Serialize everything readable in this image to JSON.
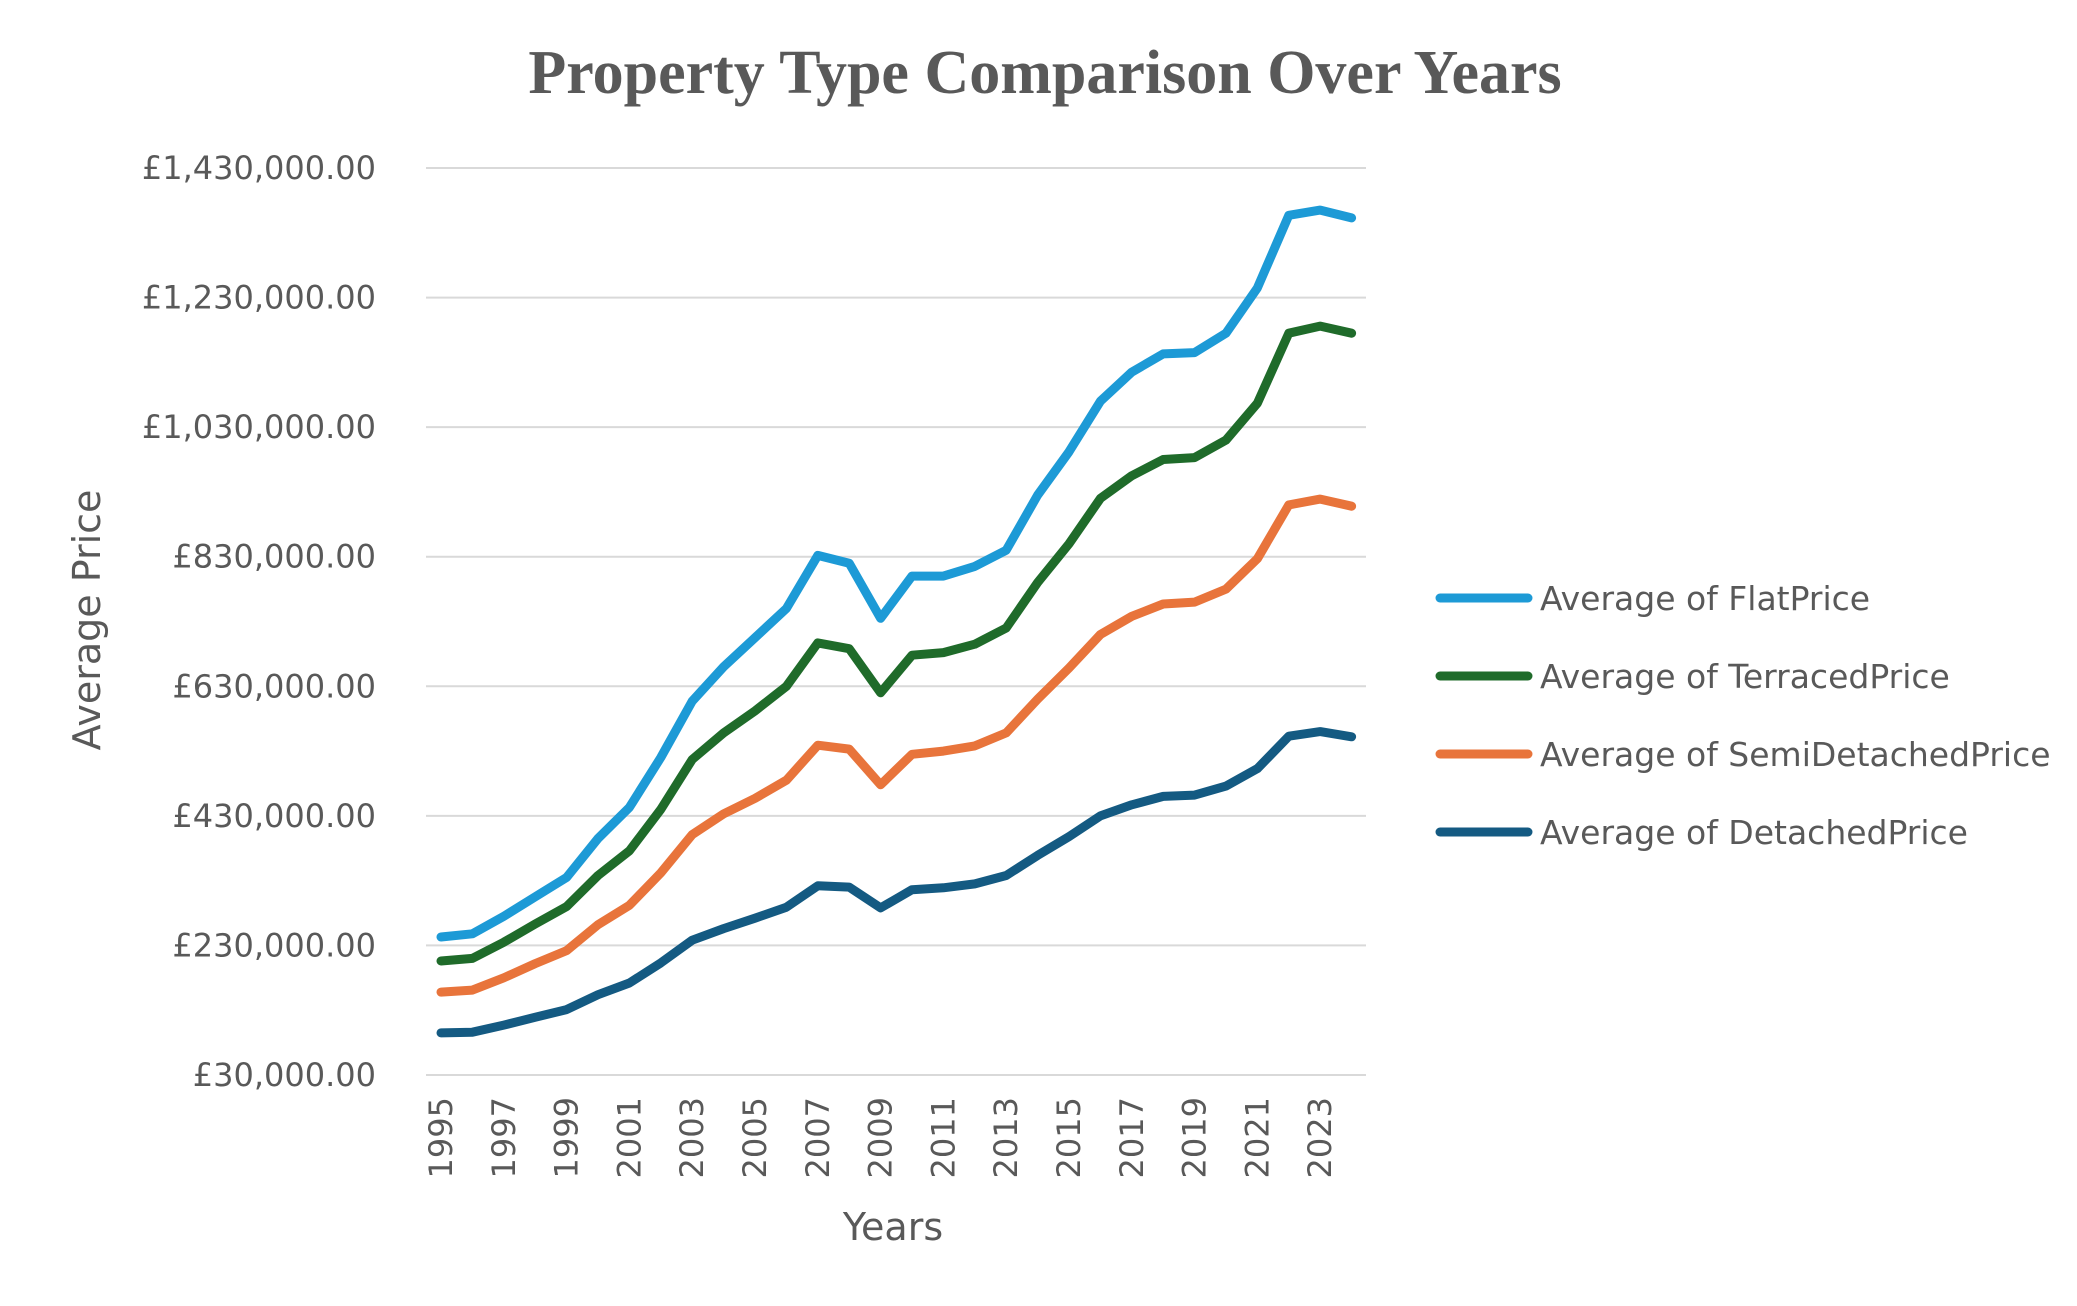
{
  "chart_data": {
    "type": "line",
    "title": "Property Type Comparison Over Years",
    "xlabel": "Years",
    "ylabel": "Average Price",
    "ylim": [
      30000,
      1430000
    ],
    "yticks": [
      30000,
      230000,
      430000,
      630000,
      830000,
      1030000,
      1230000,
      1430000
    ],
    "ytick_labels": [
      "£30,000.00",
      "£230,000.00",
      "£430,000.00",
      "£630,000.00",
      "£830,000.00",
      "£1,030,000.00",
      "£1,230,000.00",
      "£1,430,000.00"
    ],
    "x": [
      1995,
      1996,
      1997,
      1998,
      1999,
      2000,
      2001,
      2002,
      2003,
      2004,
      2005,
      2006,
      2007,
      2008,
      2009,
      2010,
      2011,
      2012,
      2013,
      2014,
      2015,
      2016,
      2017,
      2018,
      2019,
      2020,
      2021,
      2022,
      2023,
      2024
    ],
    "xtick_labels": [
      "1995",
      "1997",
      "1999",
      "2001",
      "2003",
      "2005",
      "2007",
      "2009",
      "2011",
      "2013",
      "2015",
      "2017",
      "2019",
      "2021",
      "2023"
    ],
    "xtick_values": [
      1995,
      1997,
      1999,
      2001,
      2003,
      2005,
      2007,
      2009,
      2011,
      2013,
      2015,
      2017,
      2019,
      2021,
      2023
    ],
    "grid": true,
    "legend_position": "right",
    "series": [
      {
        "name": "Average of FlatPrice",
        "color": "#1d9ad6",
        "values": [
          243000,
          248000,
          275000,
          305000,
          335000,
          395000,
          443000,
          520000,
          607000,
          660000,
          705000,
          750000,
          832000,
          820000,
          735000,
          800000,
          800000,
          815000,
          840000,
          925000,
          992000,
          1070000,
          1115000,
          1143000,
          1145000,
          1175000,
          1245000,
          1357000,
          1365000,
          1353000
        ]
      },
      {
        "name": "Average of TerracedPrice",
        "color": "#1f6b2a",
        "values": [
          206000,
          210000,
          235000,
          263000,
          290000,
          338000,
          376000,
          440000,
          517000,
          558000,
          592000,
          630000,
          697000,
          688000,
          620000,
          678000,
          682000,
          695000,
          720000,
          790000,
          850000,
          920000,
          955000,
          980000,
          983000,
          1010000,
          1067000,
          1175000,
          1186000,
          1175000
        ]
      },
      {
        "name": "Average of SemiDetachedPrice",
        "color": "#e8743b",
        "values": [
          158000,
          161000,
          180000,
          202000,
          222000,
          262000,
          292000,
          342000,
          401000,
          433000,
          457000,
          485000,
          539000,
          533000,
          478000,
          525000,
          530000,
          538000,
          558000,
          610000,
          658000,
          710000,
          738000,
          757000,
          760000,
          780000,
          827000,
          910000,
          919000,
          908000
        ]
      },
      {
        "name": "Average of DetachedPrice",
        "color": "#145a82",
        "values": [
          95000,
          96000,
          107000,
          119000,
          131000,
          154000,
          172000,
          203000,
          238000,
          256000,
          272000,
          289000,
          322000,
          320000,
          288000,
          316000,
          319000,
          325000,
          338000,
          369000,
          398000,
          430000,
          447000,
          460000,
          462000,
          476000,
          503000,
          553000,
          560000,
          552000
        ]
      }
    ]
  }
}
